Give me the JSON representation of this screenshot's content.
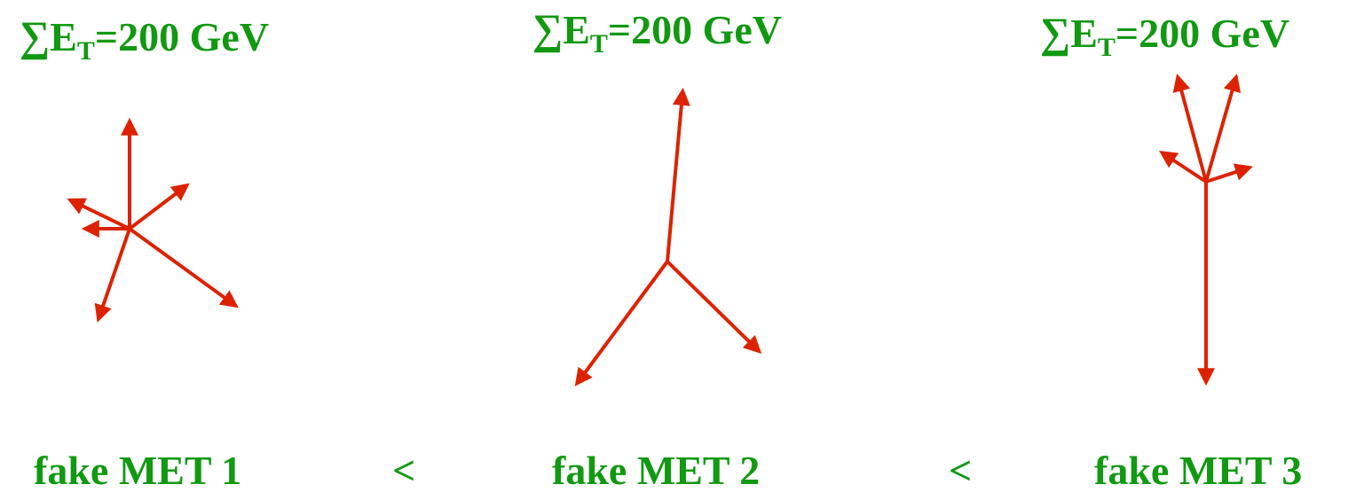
{
  "panels": [
    {
      "sum_symbol": "∑",
      "sum_var": "E",
      "sum_sub": "T",
      "sum_value": "=200 GeV",
      "label": "fake MET 1"
    },
    {
      "sum_symbol": "∑",
      "sum_var": "E",
      "sum_sub": "T",
      "sum_value": "=200 GeV",
      "label": "fake MET 2"
    },
    {
      "sum_symbol": "∑",
      "sum_var": "E",
      "sum_sub": "T",
      "sum_value": "=200 GeV",
      "label": "fake MET 3"
    }
  ],
  "comparators": [
    "<",
    "<"
  ],
  "colors": {
    "text": "#119911",
    "arrow": "#dd2200",
    "background": "#ffffff"
  }
}
